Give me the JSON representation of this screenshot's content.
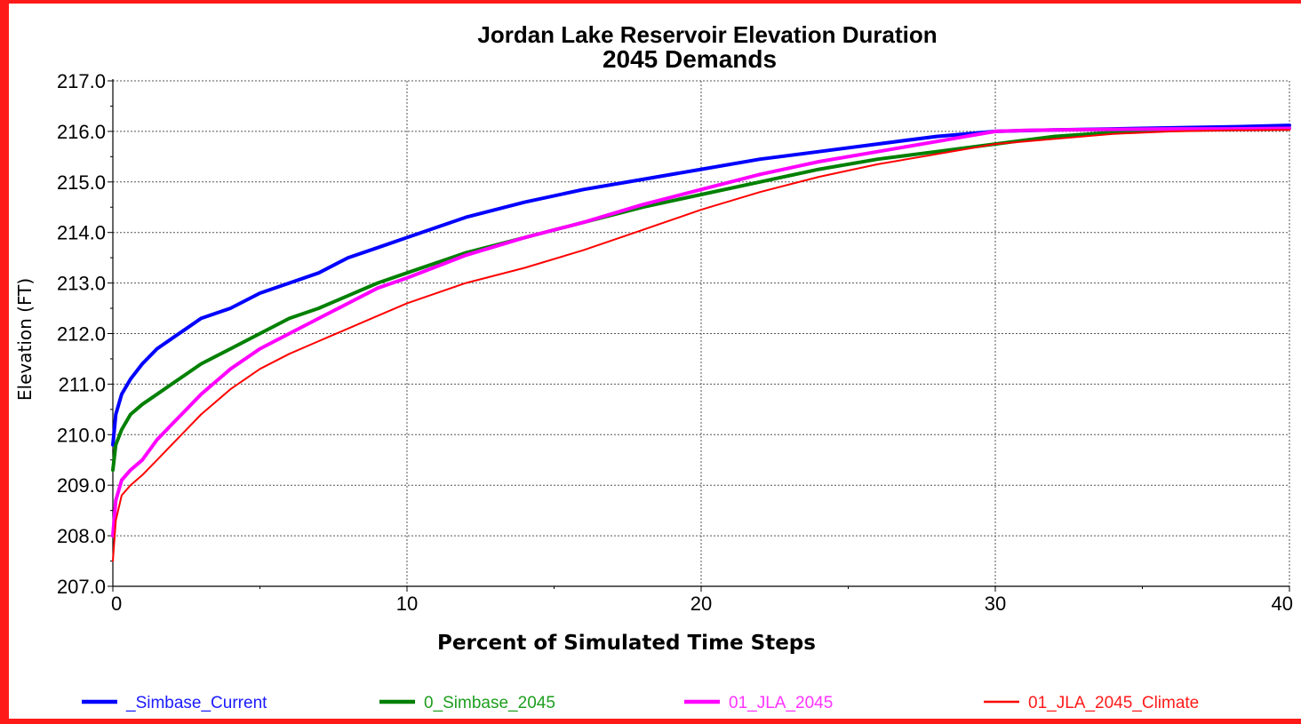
{
  "chart_data": {
    "type": "line",
    "title": "Jordan Lake Reservoir Elevation Duration",
    "subtitle": "2045 Demands",
    "xlabel": "Percent of Simulated Time Steps",
    "ylabel": "Elevation (FT)",
    "xlim": [
      0,
      40
    ],
    "ylim": [
      207.0,
      217.0
    ],
    "xticks": [
      0,
      10,
      20,
      30,
      40
    ],
    "xtick_labels": [
      "0",
      "10",
      "20",
      "30",
      "40"
    ],
    "yticks": [
      207,
      208,
      209,
      210,
      211,
      212,
      213,
      214,
      215,
      216,
      217
    ],
    "ytick_labels": [
      "207.0",
      "208.0",
      "209.0",
      "210.0",
      "211.0",
      "212.0",
      "213.0",
      "214.0",
      "215.0",
      "216.0",
      "217.0"
    ],
    "grid": true,
    "legend_position": "bottom",
    "series": [
      {
        "name": "_Simbase_Current",
        "color": "#0000ff",
        "x": [
          0,
          0.1,
          0.3,
          0.6,
          1,
          1.5,
          2,
          2.5,
          3,
          4,
          5,
          6,
          7,
          8,
          9,
          10,
          11,
          12,
          14,
          16,
          18,
          20,
          22,
          24,
          26,
          28,
          30,
          32,
          34,
          36,
          38,
          40
        ],
        "y": [
          209.8,
          210.4,
          210.8,
          211.1,
          211.4,
          211.7,
          211.9,
          212.1,
          212.3,
          212.5,
          212.8,
          213.0,
          213.2,
          213.5,
          213.7,
          213.9,
          214.1,
          214.3,
          214.6,
          214.85,
          215.05,
          215.25,
          215.45,
          215.6,
          215.75,
          215.9,
          216.0,
          216.03,
          216.05,
          216.07,
          216.09,
          216.12
        ]
      },
      {
        "name": "0_Simbase_2045",
        "color": "#008000",
        "x": [
          0,
          0.1,
          0.3,
          0.6,
          1,
          1.5,
          2,
          2.5,
          3,
          4,
          5,
          6,
          7,
          8,
          9,
          10,
          12,
          14,
          16,
          18,
          20,
          22,
          24,
          26,
          28,
          30,
          32,
          34,
          36,
          38,
          40
        ],
        "y": [
          209.3,
          209.8,
          210.1,
          210.4,
          210.6,
          210.8,
          211.0,
          211.2,
          211.4,
          211.7,
          212.0,
          212.3,
          212.5,
          212.75,
          213.0,
          213.2,
          213.6,
          213.9,
          214.2,
          214.5,
          214.75,
          215.0,
          215.25,
          215.45,
          215.6,
          215.75,
          215.9,
          215.98,
          216.02,
          216.04,
          216.06
        ]
      },
      {
        "name": "01_JLA_2045",
        "color": "#ff00ff",
        "x": [
          0,
          0.1,
          0.3,
          0.6,
          1,
          1.5,
          2,
          2.5,
          3,
          4,
          5,
          6,
          7,
          8,
          9,
          10,
          12,
          14,
          16,
          18,
          20,
          22,
          24,
          26,
          28,
          30,
          31,
          32,
          34,
          36,
          38,
          40
        ],
        "y": [
          208.0,
          208.7,
          209.1,
          209.3,
          209.5,
          209.9,
          210.2,
          210.5,
          210.8,
          211.3,
          211.7,
          212.0,
          212.3,
          212.6,
          212.9,
          213.1,
          213.55,
          213.9,
          214.2,
          214.55,
          214.85,
          215.15,
          215.4,
          215.6,
          215.8,
          216.0,
          216.02,
          216.03,
          216.04,
          216.05,
          216.05,
          216.06
        ]
      },
      {
        "name": "01_JLA_2045_Climate",
        "color": "#ff0000",
        "x": [
          0,
          0.1,
          0.3,
          0.6,
          1,
          1.5,
          2,
          2.5,
          3,
          4,
          5,
          6,
          7,
          8,
          9,
          10,
          12,
          14,
          16,
          18,
          20,
          22,
          24,
          26,
          28,
          30,
          32,
          34,
          36,
          38,
          40
        ],
        "y": [
          207.5,
          208.3,
          208.8,
          209.0,
          209.2,
          209.5,
          209.8,
          210.1,
          210.4,
          210.9,
          211.3,
          211.6,
          211.85,
          212.1,
          212.35,
          212.6,
          213.0,
          213.3,
          213.65,
          214.05,
          214.45,
          214.8,
          215.1,
          215.35,
          215.55,
          215.75,
          215.85,
          215.95,
          216.0,
          216.02,
          216.03
        ]
      }
    ]
  },
  "legend": {
    "items": [
      {
        "name": "_Simbase_Current",
        "color": "#0000ff",
        "text_color": "#1a1aff"
      },
      {
        "name": "0_Simbase_2045",
        "color": "#008000",
        "text_color": "#1e9e1e"
      },
      {
        "name": "01_JLA_2045",
        "color": "#ff00ff",
        "text_color": "#ff33ff"
      },
      {
        "name": "01_JLA_2045_Climate",
        "color": "#ff0000",
        "text_color": "#ff1a1a"
      }
    ]
  },
  "frame": {
    "border_color": "#ff1a1a"
  }
}
